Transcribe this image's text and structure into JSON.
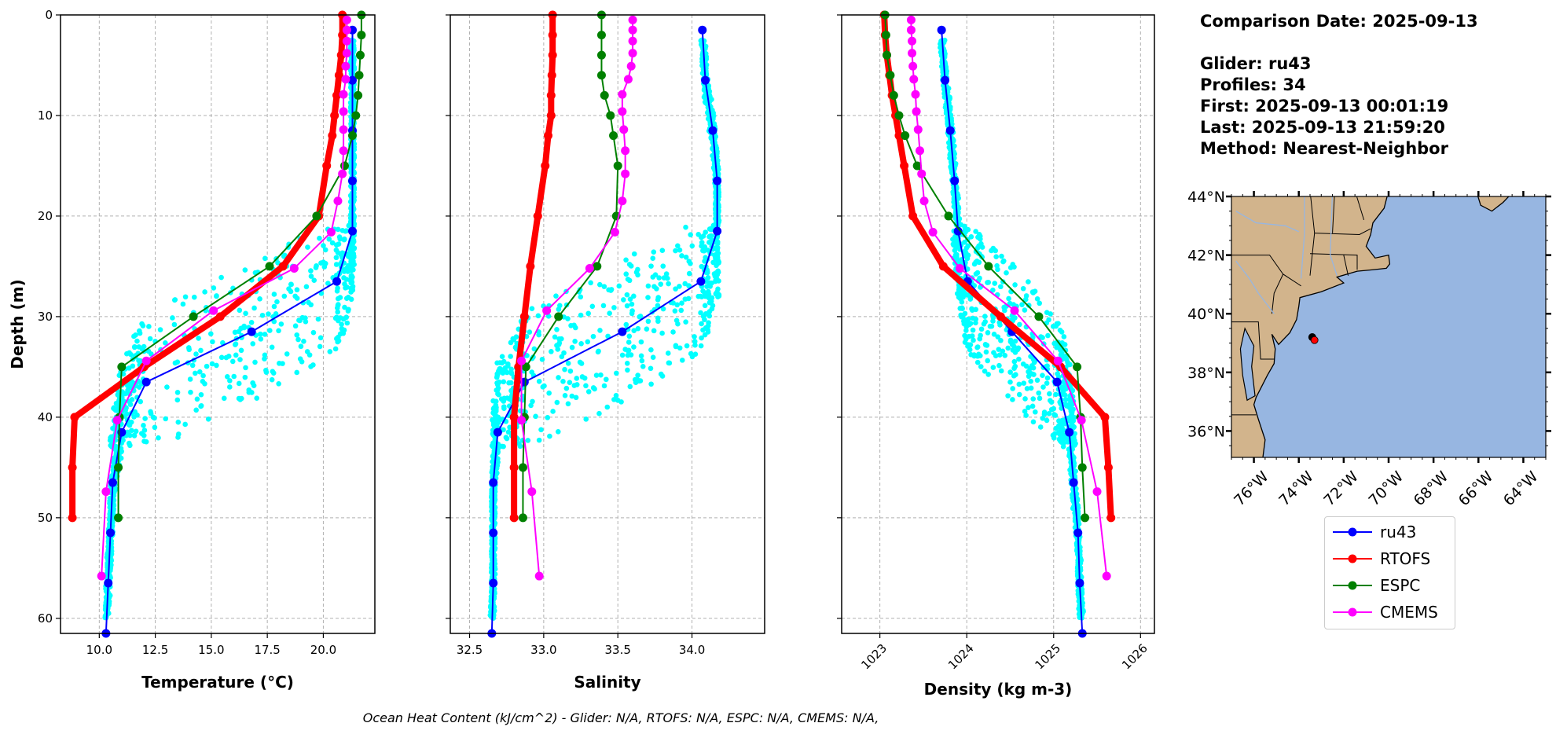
{
  "info": {
    "comparison_date": "Comparison Date: 2025-09-13",
    "glider": "Glider: ru43",
    "profiles": "Profiles: 34",
    "first": "First: 2025-09-13 00:01:19",
    "last": "Last: 2025-09-13 21:59:20",
    "method": "Method: Nearest-Neighbor"
  },
  "footer": "Ocean Heat Content (kJ/cm^2) - Glider: N/A,  RTOFS: N/A,  ESPC: N/A,  CMEMS: N/A,",
  "legend": [
    {
      "name": "ru43",
      "color": "#0000ff"
    },
    {
      "name": "RTOFS",
      "color": "#ff0000"
    },
    {
      "name": "ESPC",
      "color": "#008000"
    },
    {
      "name": "CMEMS",
      "color": "#ff00ff"
    }
  ],
  "colors": {
    "glider_raw": "#00ffff",
    "land": "#d2b48c",
    "ocean": "#97b6e1",
    "river": "#97b6e1",
    "grid": "#b0b0b0"
  },
  "chart_data": [
    {
      "type": "line",
      "xlabel": "Temperature (°C)",
      "ylabel": "Depth (m)",
      "xlim": [
        8.27,
        22.3
      ],
      "ylim": [
        61.5,
        0
      ],
      "xticks": [
        10.0,
        12.5,
        15.0,
        17.5,
        20.0
      ],
      "xtick_labels": [
        "10.0",
        "12.5",
        "15.0",
        "17.5",
        "20.0"
      ],
      "yticks": [
        0,
        10,
        20,
        30,
        40,
        50,
        60
      ],
      "ytick_labels": [
        "0",
        "10",
        "20",
        "30",
        "40",
        "50",
        "60"
      ],
      "grid": true,
      "series": [
        {
          "name": "ru43",
          "depth": [
            1.5,
            6.5,
            11.5,
            16.5,
            21.5,
            26.5,
            31.5,
            36.5,
            41.5,
            46.5,
            51.5,
            56.5,
            61.5
          ],
          "values": [
            21.3,
            21.3,
            21.3,
            21.3,
            21.3,
            20.6,
            16.8,
            12.1,
            11.0,
            10.6,
            10.5,
            10.4,
            10.3
          ]
        },
        {
          "name": "RTOFS",
          "depth": [
            0,
            2,
            4,
            6,
            8,
            10,
            12,
            15,
            20,
            25,
            30,
            35,
            40,
            45,
            50
          ],
          "values": [
            20.85,
            20.85,
            20.8,
            20.7,
            20.6,
            20.5,
            20.4,
            20.15,
            19.8,
            18.2,
            15.4,
            12.0,
            8.9,
            8.8,
            8.8
          ]
        },
        {
          "name": "ESPC",
          "depth": [
            0,
            2,
            4,
            6,
            8,
            10,
            12,
            15,
            20,
            25,
            30,
            35,
            40,
            45,
            50
          ],
          "values": [
            21.7,
            21.7,
            21.65,
            21.6,
            21.55,
            21.45,
            21.3,
            20.95,
            19.7,
            17.6,
            14.2,
            11.0,
            10.9,
            10.85,
            10.85
          ]
        },
        {
          "name": "CMEMS",
          "depth": [
            0.5,
            1.5,
            2.6,
            3.8,
            5.1,
            6.4,
            7.9,
            9.6,
            11.4,
            13.5,
            15.8,
            18.5,
            21.6,
            25.2,
            29.4,
            34.4,
            40.3,
            47.4,
            55.8
          ],
          "values": [
            21.05,
            21.05,
            21.05,
            21.05,
            21.0,
            21.0,
            20.9,
            20.9,
            20.9,
            20.9,
            20.85,
            20.65,
            20.35,
            18.7,
            15.1,
            12.1,
            10.8,
            10.3,
            10.1
          ]
        }
      ]
    },
    {
      "type": "line",
      "xlabel": "Salinity",
      "xlim": [
        32.37,
        34.49
      ],
      "ylim": [
        61.5,
        0
      ],
      "xticks": [
        32.5,
        33.0,
        33.5,
        34.0
      ],
      "xtick_labels": [
        "32.5",
        "33.0",
        "33.5",
        "34.0"
      ],
      "yticks": [
        0,
        10,
        20,
        30,
        40,
        50,
        60
      ],
      "grid": true,
      "series": [
        {
          "name": "ru43",
          "depth": [
            1.5,
            6.5,
            11.5,
            16.5,
            21.5,
            26.5,
            31.5,
            36.5,
            41.5,
            46.5,
            51.5,
            56.5,
            61.5
          ],
          "values": [
            34.07,
            34.09,
            34.14,
            34.17,
            34.17,
            34.06,
            33.53,
            32.87,
            32.69,
            32.66,
            32.66,
            32.66,
            32.65
          ]
        },
        {
          "name": "RTOFS",
          "depth": [
            0,
            2,
            4,
            6,
            8,
            10,
            12,
            15,
            20,
            25,
            30,
            35,
            40,
            45,
            50
          ],
          "values": [
            33.06,
            33.06,
            33.06,
            33.055,
            33.05,
            33.05,
            33.03,
            33.01,
            32.96,
            32.91,
            32.87,
            32.83,
            32.8,
            32.8,
            32.8
          ]
        },
        {
          "name": "ESPC",
          "depth": [
            0,
            2,
            4,
            6,
            8,
            10,
            12,
            15,
            20,
            25,
            30,
            35,
            40,
            45,
            50
          ],
          "values": [
            33.39,
            33.39,
            33.39,
            33.39,
            33.41,
            33.45,
            33.47,
            33.5,
            33.49,
            33.36,
            33.1,
            32.88,
            32.87,
            32.86,
            32.86
          ]
        },
        {
          "name": "CMEMS",
          "depth": [
            0.5,
            1.5,
            2.6,
            3.8,
            5.1,
            6.4,
            7.9,
            9.6,
            11.4,
            13.5,
            15.8,
            18.5,
            21.6,
            25.2,
            29.4,
            34.4,
            40.3,
            47.4,
            55.8
          ],
          "values": [
            33.6,
            33.6,
            33.6,
            33.6,
            33.59,
            33.57,
            33.53,
            33.53,
            33.54,
            33.55,
            33.55,
            33.53,
            33.48,
            33.31,
            33.02,
            32.85,
            32.85,
            32.92,
            32.97
          ]
        }
      ]
    },
    {
      "type": "line",
      "xlabel": "Density (kg m-3)",
      "xlim": [
        1022.56,
        1026.16
      ],
      "ylim": [
        61.5,
        0
      ],
      "xticks": [
        1023,
        1024,
        1025,
        1026
      ],
      "xtick_labels": [
        "1023",
        "1024",
        "1025",
        "1026"
      ],
      "yticks": [
        0,
        10,
        20,
        30,
        40,
        50,
        60
      ],
      "grid": true,
      "series": [
        {
          "name": "ru43",
          "depth": [
            1.5,
            6.5,
            11.5,
            16.5,
            21.5,
            26.5,
            31.5,
            36.5,
            41.5,
            46.5,
            51.5,
            56.5,
            61.5
          ],
          "values": [
            1023.71,
            1023.75,
            1023.81,
            1023.86,
            1023.9,
            1024.01,
            1024.52,
            1025.04,
            1025.18,
            1025.23,
            1025.28,
            1025.3,
            1025.33
          ]
        },
        {
          "name": "RTOFS",
          "depth": [
            0,
            2,
            4,
            6,
            8,
            10,
            12,
            15,
            20,
            25,
            30,
            35,
            40,
            45,
            50
          ],
          "values": [
            1023.05,
            1023.06,
            1023.08,
            1023.11,
            1023.14,
            1023.18,
            1023.22,
            1023.28,
            1023.38,
            1023.73,
            1024.39,
            1025.08,
            1025.59,
            1025.63,
            1025.66
          ]
        },
        {
          "name": "ESPC",
          "depth": [
            0,
            2,
            4,
            6,
            8,
            10,
            12,
            15,
            20,
            25,
            30,
            35,
            40,
            45,
            50
          ],
          "values": [
            1023.06,
            1023.07,
            1023.08,
            1023.12,
            1023.16,
            1023.22,
            1023.29,
            1023.43,
            1023.79,
            1024.25,
            1024.83,
            1025.27,
            1025.31,
            1025.33,
            1025.36
          ]
        },
        {
          "name": "CMEMS",
          "depth": [
            0.5,
            1.5,
            2.6,
            3.8,
            5.1,
            6.4,
            7.9,
            9.6,
            11.4,
            13.5,
            15.8,
            18.5,
            21.6,
            25.2,
            29.4,
            34.4,
            40.3,
            47.4,
            55.8
          ],
          "values": [
            1023.36,
            1023.36,
            1023.37,
            1023.37,
            1023.38,
            1023.39,
            1023.41,
            1023.42,
            1023.44,
            1023.46,
            1023.48,
            1023.51,
            1023.61,
            1023.92,
            1024.55,
            1025.05,
            1025.32,
            1025.5,
            1025.61
          ]
        }
      ]
    },
    {
      "type": "map",
      "lon_range": [
        -77.0,
        -63.0
      ],
      "lat_range": [
        35.1,
        44.0
      ],
      "lat_ticks": [
        36,
        38,
        40,
        42,
        44
      ],
      "lat_tick_labels": [
        "36°N",
        "38°N",
        "40°N",
        "42°N",
        "44°N"
      ],
      "lon_ticks": [
        -76,
        -74,
        -72,
        -70,
        -68,
        -66,
        -64
      ],
      "lon_tick_labels": [
        "76°W",
        "74°W",
        "72°W",
        "70°W",
        "68°W",
        "66°W",
        "64°W"
      ],
      "glider_track": [
        {
          "lon": -73.4,
          "lat": 39.2
        }
      ],
      "model_point": {
        "lon": -73.3,
        "lat": 39.1
      }
    }
  ]
}
